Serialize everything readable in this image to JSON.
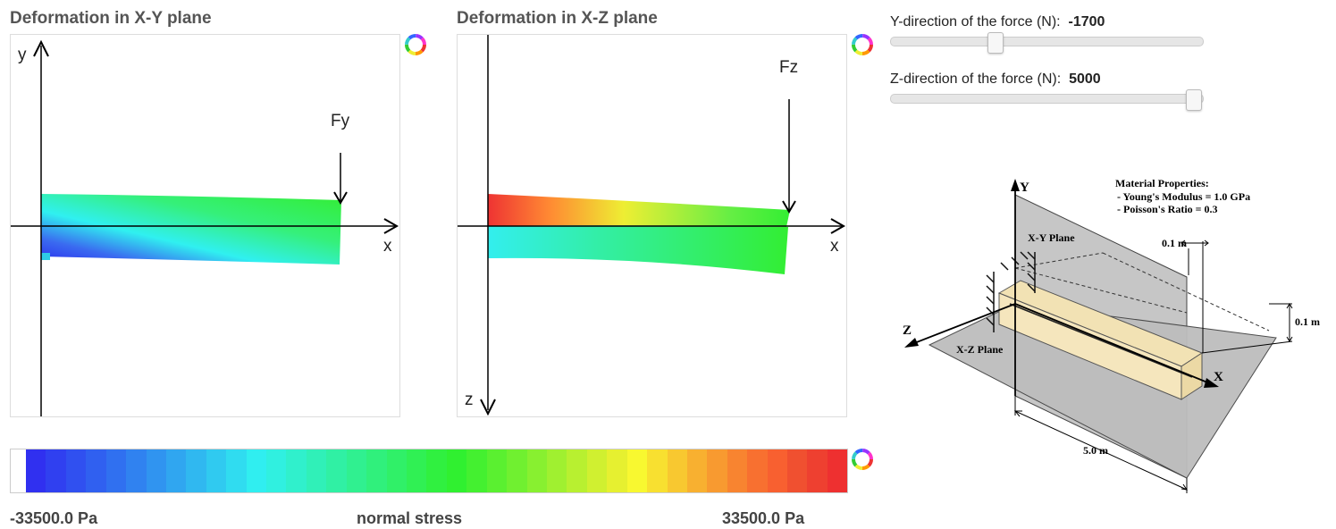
{
  "panels": {
    "xy": {
      "title": "Deformation in X-Y plane",
      "x_label": "x",
      "y_label": "y",
      "force_label": "Fy"
    },
    "xz": {
      "title": "Deformation in X-Z plane",
      "x_label": "x",
      "z_label": "z",
      "force_label": "Fz"
    }
  },
  "colorbar": {
    "min_label": "-33500.0 Pa",
    "max_label": "33500.0 Pa",
    "center_label": "normal stress",
    "min_value": -33500.0,
    "max_value": 33500.0
  },
  "sliders": [
    {
      "label": "Y-direction of the force (N):",
      "value_text": "-1700",
      "fraction": 0.33
    },
    {
      "label": "Z-direction of the force (N):",
      "value_text": "5000",
      "fraction": 1.0
    }
  ],
  "diagram": {
    "axis_y": "Y",
    "axis_z": "Z",
    "axis_x": "X",
    "xy_plane": "X-Y Plane",
    "xz_plane": "X-Z Plane",
    "props_title": "Material Properties:",
    "props_young": "- Young's Modulus = 1.0 GPa",
    "props_poisson": "- Poisson's Ratio    = 0.3",
    "dim_width": "0.1 m",
    "dim_height": "0.1 m",
    "dim_length": "5.0 m"
  },
  "icons": [
    "color-wheel-icon"
  ]
}
